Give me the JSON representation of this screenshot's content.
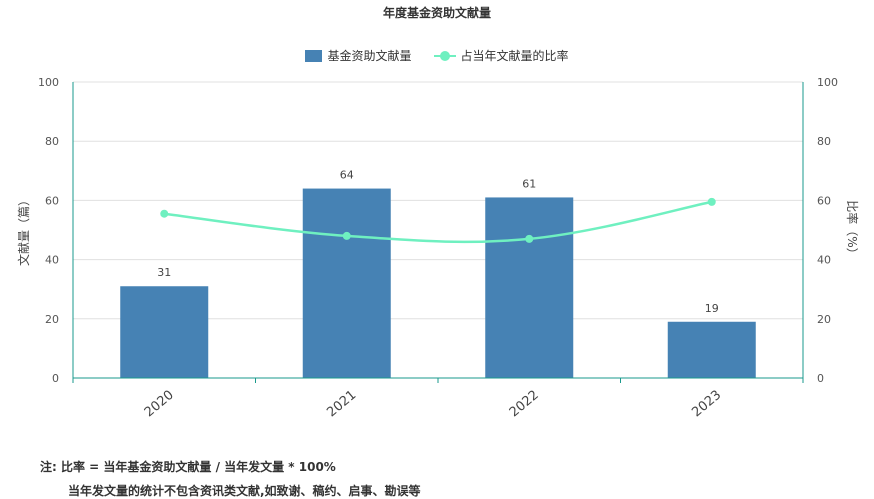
{
  "chart_data": {
    "type": "bar",
    "title": "年度基金资助文献量",
    "categories": [
      "2020",
      "2021",
      "2022",
      "2023"
    ],
    "series": [
      {
        "name": "基金资助文献量",
        "kind": "bar",
        "axis": "left",
        "color": "#4682b4",
        "values": [
          31,
          64,
          61,
          19
        ]
      },
      {
        "name": "占当年文献量的比率",
        "kind": "line",
        "axis": "right",
        "color": "#6ff0c0",
        "values": [
          55.5,
          48,
          47,
          59.5
        ]
      }
    ],
    "ylabel": "文献量（篇）",
    "ylabel_right": "比率（%）",
    "ylim": [
      0,
      100
    ],
    "ylim_right": [
      0,
      100
    ],
    "yticks": [
      0,
      20,
      40,
      60,
      80,
      100
    ],
    "yticks_right": [
      0,
      20,
      40,
      60,
      80,
      100
    ],
    "grid": true,
    "legend": "top-center",
    "right_axis_color": "#1a9a8c"
  },
  "notes": {
    "line1": "注:   比率 = 当年基金资助文献量 / 当年发文量 * 100%",
    "line2": "当年发文量的统计不包含资讯类文献,如致谢、稿约、启事、勘误等"
  }
}
